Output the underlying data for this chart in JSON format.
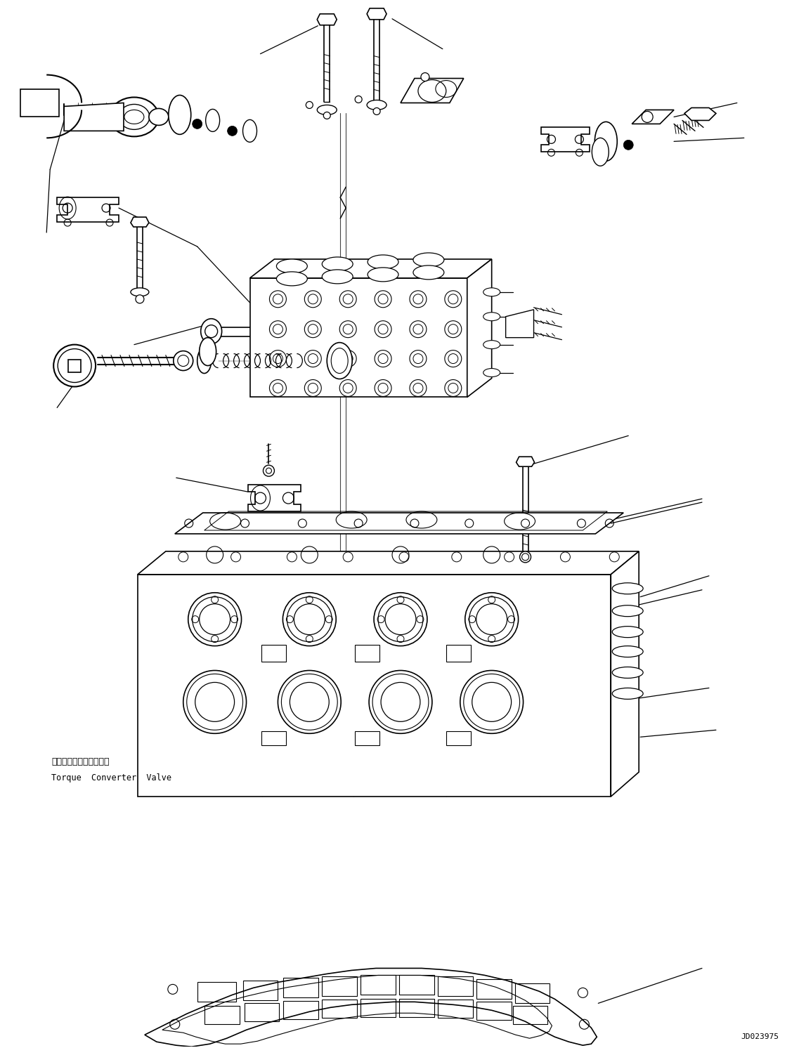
{
  "background_color": "#ffffff",
  "line_color": "#000000",
  "line_width": 1.0,
  "figure_width": 11.37,
  "figure_height": 14.92,
  "dpi": 100,
  "label_text_1": "トルクコンバータバルブ",
  "label_text_2": "Torque  Converter  Valve",
  "watermark": "JD023975",
  "font_family": "monospace"
}
